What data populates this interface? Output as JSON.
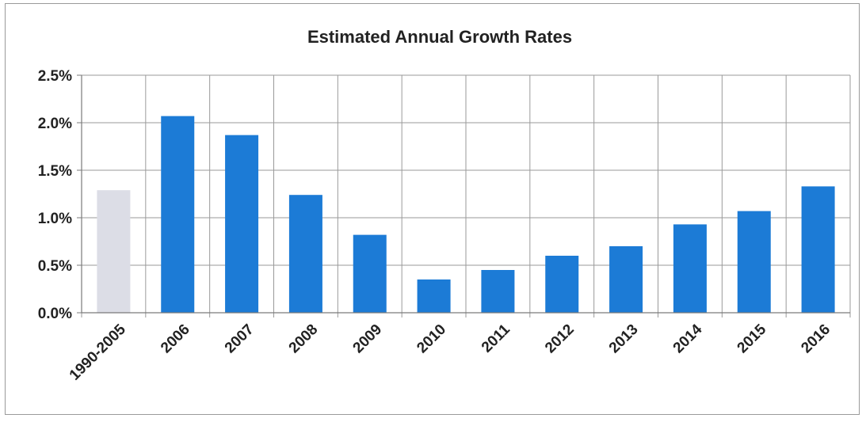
{
  "chart_data": {
    "type": "bar",
    "title": "Estimated Annual Growth Rates",
    "xlabel": "",
    "ylabel": "",
    "categories": [
      "1990-2005",
      "2006",
      "2007",
      "2008",
      "2009",
      "2010",
      "2011",
      "2012",
      "2013",
      "2014",
      "2015",
      "2016"
    ],
    "values": [
      1.29,
      2.07,
      1.87,
      1.24,
      0.82,
      0.35,
      0.45,
      0.6,
      0.7,
      0.93,
      1.07,
      1.33
    ],
    "value_unit": "%",
    "ylim": [
      0,
      2.5
    ],
    "yticks": [
      "0.0%",
      "0.5%",
      "1.0%",
      "1.5%",
      "2.0%",
      "2.5%"
    ],
    "ytick_values": [
      0,
      0.5,
      1.0,
      1.5,
      2.0,
      2.5
    ],
    "grid": true,
    "legend": "none",
    "colors": {
      "bar": "#1c7bd6",
      "first_bar": "#dcdde6",
      "grid": "#9a9a9a",
      "axis": "#7a7a7a"
    }
  }
}
